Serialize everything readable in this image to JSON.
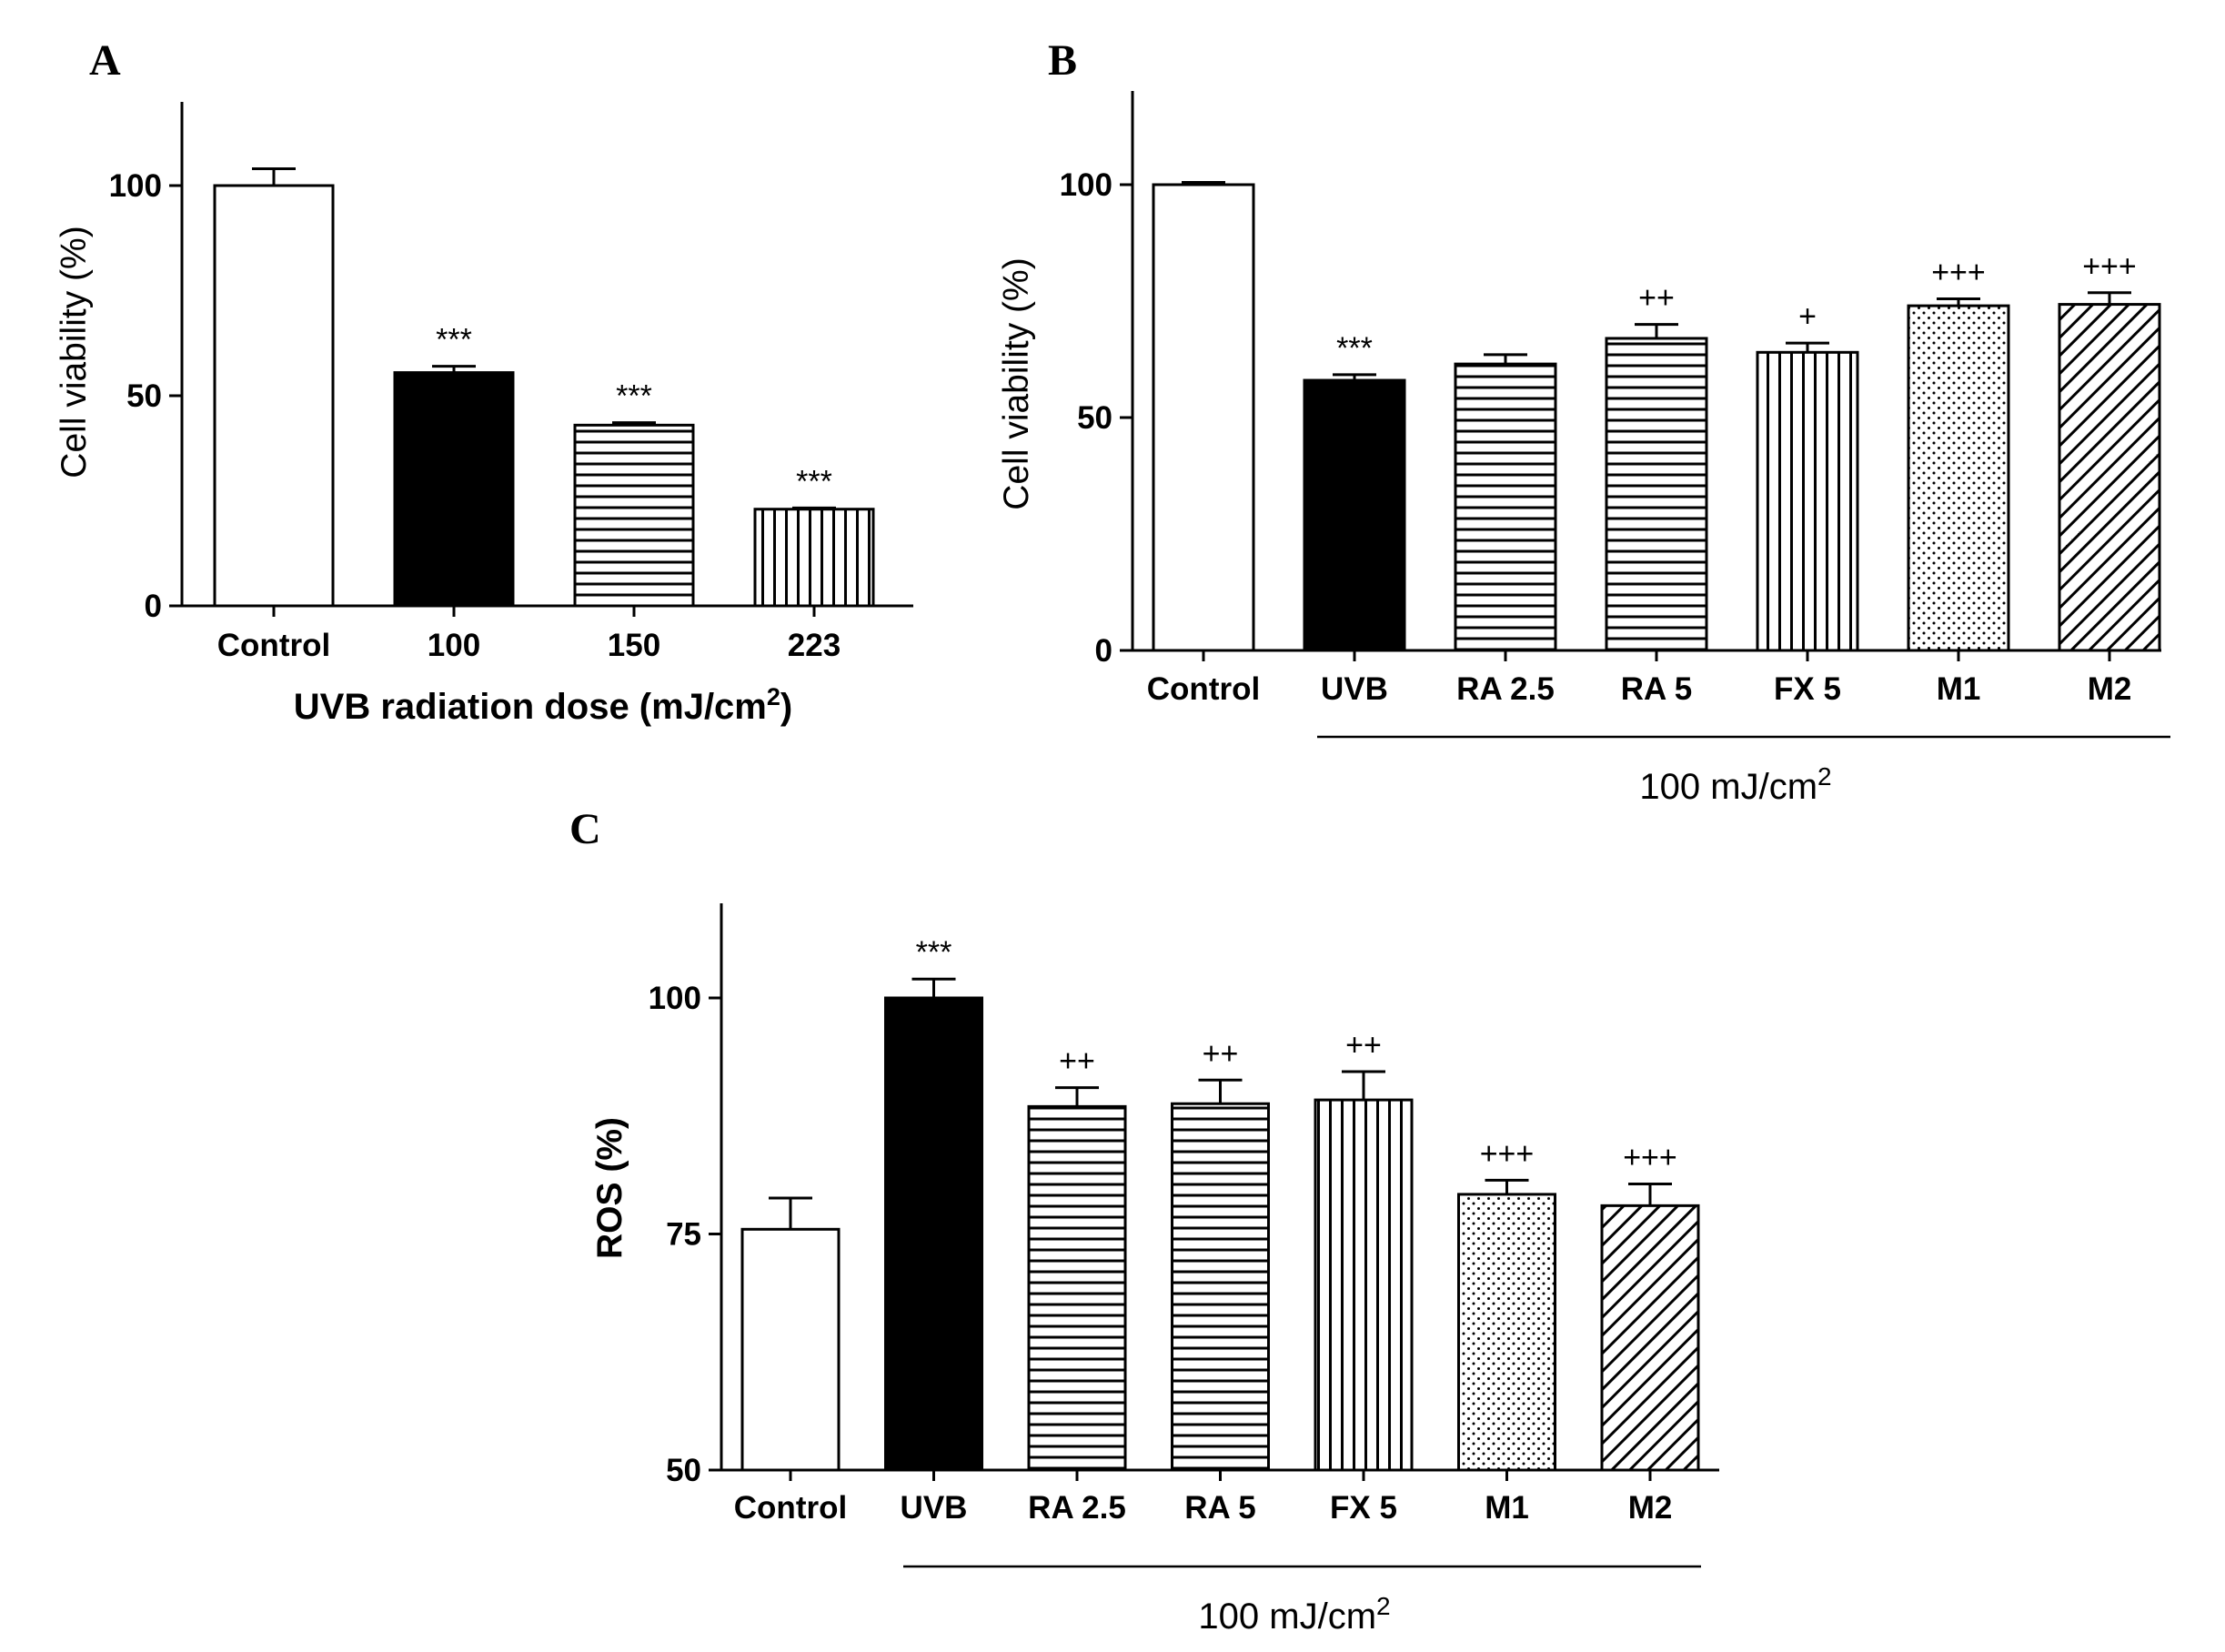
{
  "chart_data": [
    {
      "panel": "A",
      "type": "bar",
      "title": "",
      "ylabel": "Cell viability (%)",
      "xlabel": "UVB radiation dose (mJ/cm",
      "xlabel_sup": "2",
      "xlabel_tail": ")",
      "ylim": [
        0,
        120
      ],
      "yticks": [
        "0",
        "50",
        "100"
      ],
      "categories": [
        "Control",
        "100",
        "150",
        "223"
      ],
      "values": [
        100,
        55.5,
        43,
        23
      ],
      "errors": [
        4,
        1.5,
        0.6,
        0.3
      ],
      "patterns": [
        "white",
        "black",
        "hlines",
        "vlines"
      ],
      "significance": [
        "",
        "***",
        "***",
        "***"
      ]
    },
    {
      "panel": "B",
      "type": "bar",
      "title": "",
      "ylabel": "Cell viability  (%)",
      "xlabel": "",
      "group_label": "100 mJ/cm",
      "group_label_sup": "2",
      "ylim": [
        0,
        120
      ],
      "yticks": [
        "0",
        "50",
        "100"
      ],
      "categories": [
        "Control",
        "UVB",
        "RA 2.5",
        "RA 5",
        "FX 5",
        "M1",
        "M2"
      ],
      "values": [
        100,
        58,
        61.5,
        67,
        64,
        74,
        74.3
      ],
      "errors": [
        0.5,
        1.2,
        2,
        3,
        2,
        1.5,
        2.5
      ],
      "patterns": [
        "white",
        "black",
        "hlines",
        "hlines",
        "vlines",
        "dots",
        "diag"
      ],
      "significance": [
        "",
        "***",
        "",
        "++",
        "+",
        "+++",
        "+++"
      ]
    },
    {
      "panel": "C",
      "type": "bar",
      "title": "",
      "ylabel": "ROS (%)",
      "xlabel": "",
      "group_label": "100 mJ/cm",
      "group_label_sup": "2",
      "ylim": [
        50,
        110
      ],
      "yticks": [
        "50",
        "75",
        "100"
      ],
      "categories": [
        "Control",
        "UVB",
        "RA 2.5",
        "RA 5",
        "FX 5",
        "M1",
        "M2"
      ],
      "values": [
        75.5,
        100,
        88.5,
        88.8,
        89.2,
        79.2,
        78
      ],
      "errors": [
        3.3,
        2,
        2,
        2.5,
        3,
        1.5,
        2.3
      ],
      "patterns": [
        "white",
        "black",
        "hlines",
        "hlines",
        "vlines",
        "dots",
        "diag"
      ],
      "significance": [
        "",
        "***",
        "++",
        "++",
        "++",
        "+++",
        "+++"
      ]
    }
  ]
}
